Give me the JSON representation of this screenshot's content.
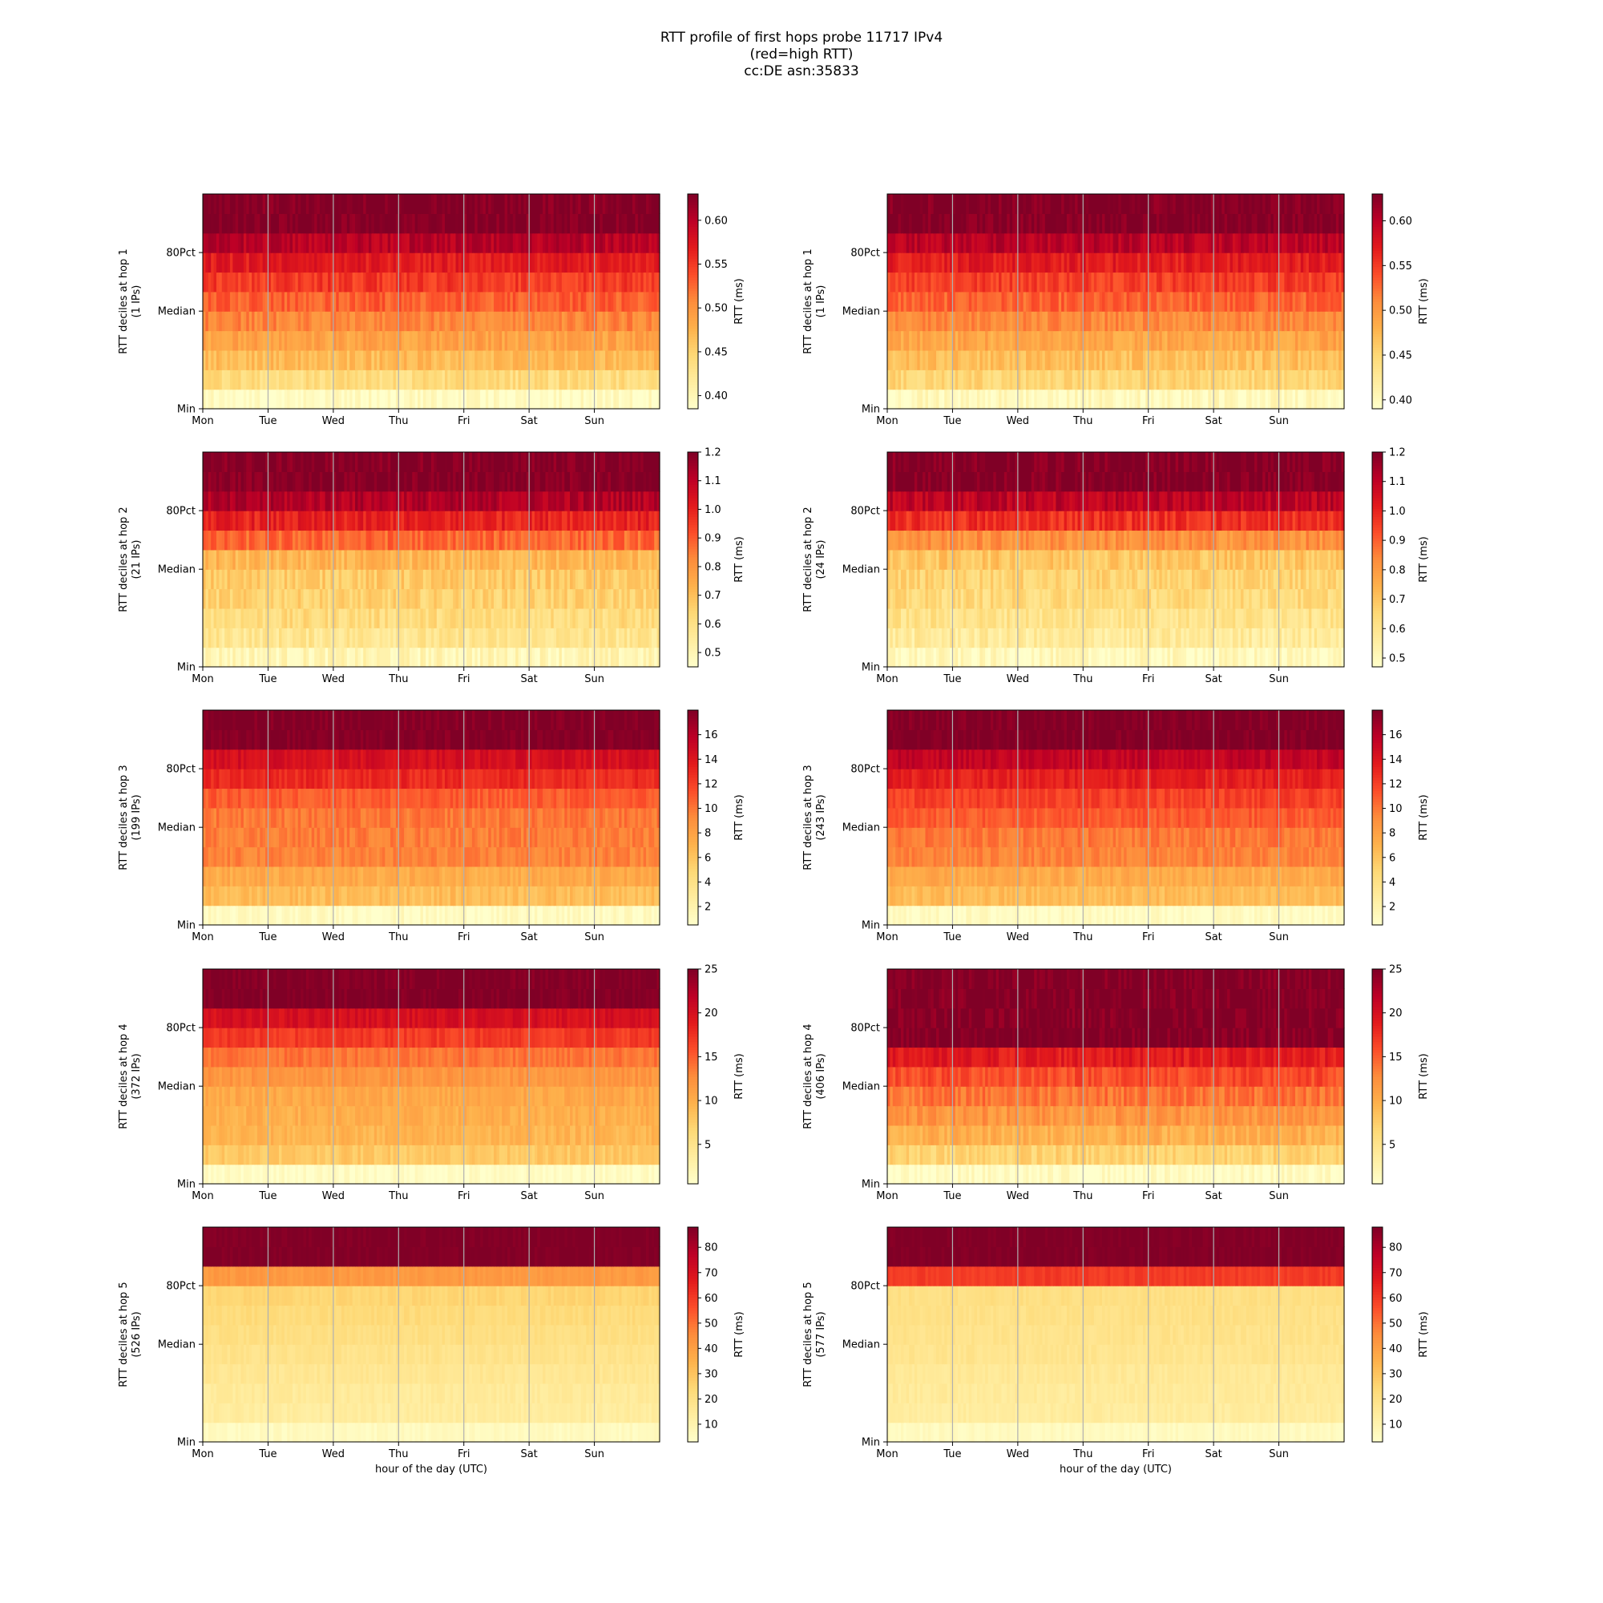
{
  "title_lines": [
    "RTT profile of first hops probe 11717 IPv4",
    "(red=high RTT)",
    "cc:DE asn:35833"
  ],
  "colormap": [
    "#ffffcc",
    "#ffeda0",
    "#fed976",
    "#feb24c",
    "#fd8d3c",
    "#fc4e2a",
    "#e31a1c",
    "#bd0026",
    "#800026"
  ],
  "gridline_color": "#b0b0b0",
  "chart_data": [
    {
      "type": "heatmap",
      "ylabel": [
        "RTT deciles at hop 1",
        "(1 IPs)"
      ],
      "xlabel": "",
      "xticks": [
        "Mon",
        "Tue",
        "Wed",
        "Thu",
        "Fri",
        "Sat",
        "Sun"
      ],
      "yticks": [
        "Min",
        "Median",
        "80Pct"
      ],
      "colorbar": {
        "label": "RTT (ms)",
        "range": [
          0.385,
          0.63
        ],
        "ticks": [
          "0.40",
          "0.45",
          "0.50",
          "0.55",
          "0.60"
        ],
        "tick_values": [
          0.4,
          0.45,
          0.5,
          0.55,
          0.6
        ]
      },
      "decile_levels": [
        0.39,
        0.44,
        0.47,
        0.49,
        0.51,
        0.53,
        0.55,
        0.57,
        0.6,
        0.63,
        0.63
      ],
      "noise": 0.015,
      "grid": true
    },
    {
      "type": "heatmap",
      "ylabel": [
        "RTT deciles at hop 1",
        "(1 IPs)"
      ],
      "xlabel": "",
      "xticks": [
        "Mon",
        "Tue",
        "Wed",
        "Thu",
        "Fri",
        "Sat",
        "Sun"
      ],
      "yticks": [
        "Min",
        "Median",
        "80Pct"
      ],
      "colorbar": {
        "label": "RTT (ms)",
        "range": [
          0.39,
          0.63
        ],
        "ticks": [
          "0.40",
          "0.45",
          "0.50",
          "0.55",
          "0.60"
        ],
        "tick_values": [
          0.4,
          0.45,
          0.5,
          0.55,
          0.6
        ]
      },
      "decile_levels": [
        0.4,
        0.45,
        0.47,
        0.49,
        0.51,
        0.53,
        0.55,
        0.57,
        0.6,
        0.63,
        0.63
      ],
      "noise": 0.015,
      "grid": true
    },
    {
      "type": "heatmap",
      "ylabel": [
        "RTT deciles at hop 2",
        "(21 IPs)"
      ],
      "xlabel": "",
      "xticks": [
        "Mon",
        "Tue",
        "Wed",
        "Thu",
        "Fri",
        "Sat",
        "Sun"
      ],
      "yticks": [
        "Min",
        "Median",
        "80Pct"
      ],
      "colorbar": {
        "label": "RTT (ms)",
        "range": [
          0.45,
          1.2
        ],
        "ticks": [
          "0.5",
          "0.6",
          "0.7",
          "0.8",
          "0.9",
          "1.0",
          "1.1",
          "1.2"
        ],
        "tick_values": [
          0.5,
          0.6,
          0.7,
          0.8,
          0.9,
          1.0,
          1.1,
          1.2
        ]
      },
      "decile_levels": [
        0.5,
        0.58,
        0.62,
        0.65,
        0.67,
        0.72,
        0.88,
        1.0,
        1.12,
        1.2,
        1.2
      ],
      "noise": 0.05,
      "grid": true
    },
    {
      "type": "heatmap",
      "ylabel": [
        "RTT deciles at hop 2",
        "(24 IPs)"
      ],
      "xlabel": "",
      "xticks": [
        "Mon",
        "Tue",
        "Wed",
        "Thu",
        "Fri",
        "Sat",
        "Sun"
      ],
      "yticks": [
        "Min",
        "Median",
        "80Pct"
      ],
      "colorbar": {
        "label": "RTT (ms)",
        "range": [
          0.47,
          1.2
        ],
        "ticks": [
          "0.5",
          "0.6",
          "0.7",
          "0.8",
          "0.9",
          "1.0",
          "1.1",
          "1.2"
        ],
        "tick_values": [
          0.5,
          0.6,
          0.7,
          0.8,
          0.9,
          1.0,
          1.1,
          1.2
        ]
      },
      "decile_levels": [
        0.5,
        0.57,
        0.61,
        0.64,
        0.66,
        0.7,
        0.82,
        0.98,
        1.1,
        1.2,
        1.2
      ],
      "noise": 0.05,
      "grid": true
    },
    {
      "type": "heatmap",
      "ylabel": [
        "RTT deciles at hop 3",
        "(199 IPs)"
      ],
      "xlabel": "",
      "xticks": [
        "Mon",
        "Tue",
        "Wed",
        "Thu",
        "Fri",
        "Sat",
        "Sun"
      ],
      "yticks": [
        "Min",
        "Median",
        "80Pct"
      ],
      "colorbar": {
        "label": "RTT (ms)",
        "range": [
          0.5,
          18.0
        ],
        "ticks": [
          "2",
          "4",
          "6",
          "8",
          "10",
          "12",
          "14",
          "16"
        ],
        "tick_values": [
          2,
          4,
          6,
          8,
          10,
          12,
          14,
          16
        ]
      },
      "decile_levels": [
        1.0,
        6.5,
        7.5,
        9.5,
        9.8,
        10.0,
        11.0,
        13.0,
        14.5,
        18.0,
        18.0
      ],
      "noise": 0.8,
      "grid": true
    },
    {
      "type": "heatmap",
      "ylabel": [
        "RTT deciles at hop 3",
        "(243 IPs)"
      ],
      "xlabel": "",
      "xticks": [
        "Mon",
        "Tue",
        "Wed",
        "Thu",
        "Fri",
        "Sat",
        "Sun"
      ],
      "yticks": [
        "Min",
        "Median",
        "80Pct"
      ],
      "colorbar": {
        "label": "RTT (ms)",
        "range": [
          0.5,
          18.0
        ],
        "ticks": [
          "2",
          "4",
          "6",
          "8",
          "10",
          "12",
          "14",
          "16"
        ],
        "tick_values": [
          2,
          4,
          6,
          8,
          10,
          12,
          14,
          16
        ]
      },
      "decile_levels": [
        1.0,
        6.5,
        7.5,
        9.5,
        10.0,
        11.0,
        12.0,
        13.5,
        15.5,
        18.0,
        18.0
      ],
      "noise": 0.8,
      "grid": true
    },
    {
      "type": "heatmap",
      "ylabel": [
        "RTT deciles at hop 4",
        "(372 IPs)"
      ],
      "xlabel": "",
      "xticks": [
        "Mon",
        "Tue",
        "Wed",
        "Thu",
        "Fri",
        "Sat",
        "Sun"
      ],
      "yticks": [
        "Min",
        "Median",
        "80Pct"
      ],
      "colorbar": {
        "label": "RTT (ms)",
        "range": [
          0.5,
          25.0
        ],
        "ticks": [
          "5",
          "10",
          "15",
          "20",
          "25"
        ],
        "tick_values": [
          5,
          10,
          15,
          20,
          25
        ]
      },
      "decile_levels": [
        1.0,
        8.0,
        9.5,
        10.0,
        10.5,
        12.0,
        14.0,
        17.0,
        20.0,
        25.0,
        25.0
      ],
      "noise": 1.0,
      "grid": true
    },
    {
      "type": "heatmap",
      "ylabel": [
        "RTT deciles at hop 4",
        "(406 IPs)"
      ],
      "xlabel": "",
      "xticks": [
        "Mon",
        "Tue",
        "Wed",
        "Thu",
        "Fri",
        "Sat",
        "Sun"
      ],
      "yticks": [
        "Min",
        "Median",
        "80Pct"
      ],
      "colorbar": {
        "label": "RTT (ms)",
        "range": [
          0.5,
          25.0
        ],
        "ticks": [
          "5",
          "10",
          "15",
          "20",
          "25"
        ],
        "tick_values": [
          5,
          10,
          15,
          20,
          25
        ]
      },
      "decile_levels": [
        1.0,
        7.0,
        10.0,
        12.0,
        14.0,
        16.0,
        19.0,
        25.0,
        25.0,
        25.0,
        25.0
      ],
      "noise": 1.5,
      "grid": true
    },
    {
      "type": "heatmap",
      "ylabel": [
        "RTT deciles at hop 5",
        "(526 IPs)"
      ],
      "xlabel": "hour of the day (UTC)",
      "xticks": [
        "Mon",
        "Tue",
        "Wed",
        "Thu",
        "Fri",
        "Sat",
        "Sun"
      ],
      "yticks": [
        "Min",
        "Median",
        "80Pct"
      ],
      "colorbar": {
        "label": "RTT (ms)",
        "range": [
          3.0,
          88.0
        ],
        "ticks": [
          "10",
          "20",
          "30",
          "40",
          "50",
          "60",
          "70",
          "80"
        ],
        "tick_values": [
          10,
          20,
          30,
          40,
          50,
          60,
          70,
          80
        ]
      },
      "decile_levels": [
        6.0,
        14.0,
        15.0,
        17.0,
        19.0,
        21.0,
        23.0,
        25.0,
        42.0,
        88.0,
        88.0
      ],
      "noise": 2.0,
      "grid": true
    },
    {
      "type": "heatmap",
      "ylabel": [
        "RTT deciles at hop 5",
        "(577 IPs)"
      ],
      "xlabel": "hour of the day (UTC)",
      "xticks": [
        "Mon",
        "Tue",
        "Wed",
        "Thu",
        "Fri",
        "Sat",
        "Sun"
      ],
      "yticks": [
        "Min",
        "Median",
        "80Pct"
      ],
      "colorbar": {
        "label": "RTT (ms)",
        "range": [
          3.0,
          88.0
        ],
        "ticks": [
          "10",
          "20",
          "30",
          "40",
          "50",
          "60",
          "70",
          "80"
        ],
        "tick_values": [
          10,
          20,
          30,
          40,
          50,
          60,
          70,
          80
        ]
      },
      "decile_levels": [
        6.0,
        14.0,
        15.0,
        16.0,
        18.0,
        19.0,
        20.0,
        21.0,
        60.0,
        88.0,
        88.0
      ],
      "noise": 2.0,
      "grid": true
    }
  ]
}
